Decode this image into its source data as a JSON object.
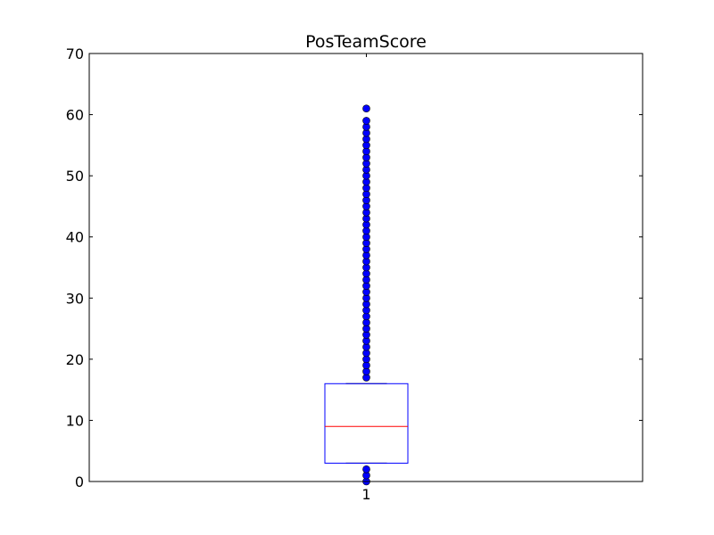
{
  "chart_data": {
    "type": "box",
    "title": "PosTeamScore",
    "xlabel": "",
    "ylabel": "",
    "categories": [
      "1"
    ],
    "ylim": [
      0,
      70
    ],
    "yticks": [
      0,
      10,
      20,
      30,
      40,
      50,
      60,
      70
    ],
    "grid": false,
    "box": {
      "whisker_low": 3,
      "q1": 3,
      "median": 9,
      "q3": 16,
      "whisker_high": 16
    },
    "outliers": [
      0,
      1,
      2,
      17,
      18,
      19,
      20,
      21,
      22,
      23,
      24,
      25,
      26,
      27,
      28,
      29,
      30,
      31,
      32,
      33,
      34,
      35,
      36,
      37,
      38,
      39,
      40,
      41,
      42,
      43,
      44,
      45,
      46,
      47,
      48,
      49,
      50,
      51,
      52,
      53,
      54,
      55,
      56,
      57,
      58,
      59,
      61
    ],
    "colors": {
      "box": "#0000ff",
      "median": "#ff0000",
      "whisker": "#000000",
      "outlier": "#0000ff"
    }
  }
}
